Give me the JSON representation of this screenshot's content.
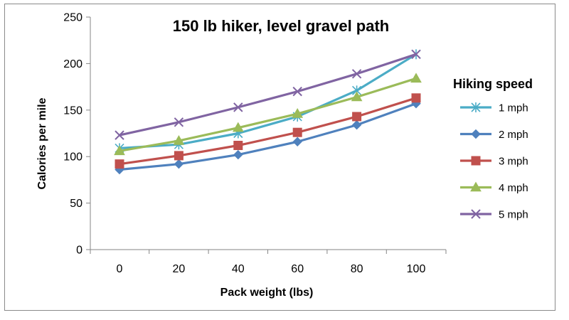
{
  "chart_data": {
    "type": "line",
    "title": "150 lb hiker, level gravel path",
    "xlabel": "Pack weight (lbs)",
    "ylabel": "Calories per mile",
    "x": [
      0,
      20,
      40,
      60,
      80,
      100
    ],
    "xlim": [
      0,
      100
    ],
    "ylim": [
      0,
      250
    ],
    "yticks": [
      0,
      50,
      100,
      150,
      200,
      250
    ],
    "grid": false,
    "legend_title": "Hiking speed",
    "legend_position": "right",
    "series": [
      {
        "name": "1 mph",
        "color": "#4bacc6",
        "marker": "asterisk",
        "values": [
          109,
          113,
          125,
          143,
          171,
          210
        ]
      },
      {
        "name": "2 mph",
        "color": "#4f81bd",
        "marker": "diamond",
        "values": [
          86,
          92,
          102,
          116,
          134,
          157
        ]
      },
      {
        "name": "3 mph",
        "color": "#c0504d",
        "marker": "square",
        "values": [
          92,
          101,
          112,
          126,
          143,
          163
        ]
      },
      {
        "name": "4 mph",
        "color": "#9bbb59",
        "marker": "triangle",
        "values": [
          106,
          117,
          131,
          146,
          164,
          184
        ]
      },
      {
        "name": "5 mph",
        "color": "#8064a2",
        "marker": "x",
        "values": [
          123,
          137,
          153,
          170,
          189,
          210
        ]
      }
    ]
  }
}
